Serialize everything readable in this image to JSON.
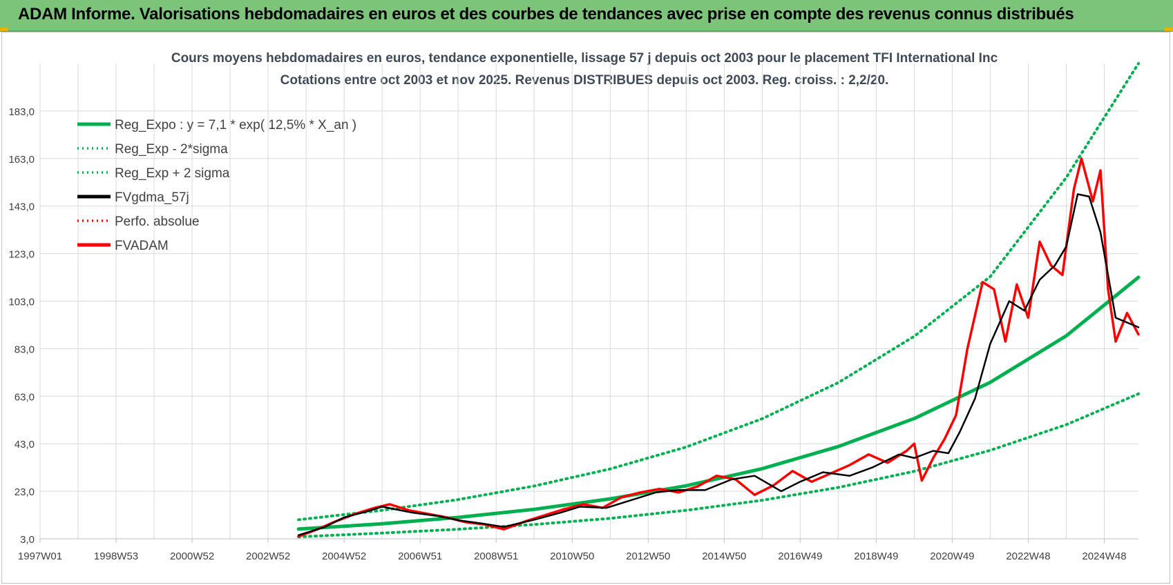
{
  "header": {
    "title": "ADAM Informe. Valorisations hebdomadaires en euros et des courbes de tendances avec prise en compte des revenus connus distribués"
  },
  "colors": {
    "header_bg": "#7cc47a",
    "trend": "#00b050",
    "smoothed": "#000000",
    "price": "#ff0000",
    "perfo": "#ff0000"
  },
  "chart_data": {
    "type": "line",
    "title_line1": "Cours moyens  hebdomadaires en euros, tendance exponentielle, lissage 57 j depuis oct 2003 pour le placement TFI International Inc",
    "title_line2": "Cotations entre oct 2003  et nov 2025. Revenus DISTRIBUES depuis oct 2003.  Reg. croiss. : 2,2/20.",
    "xlabel": "",
    "ylabel": "",
    "ylim": [
      3,
      203
    ],
    "xlim": [
      1997.0,
      2025.9
    ],
    "y_ticks": [
      "183,0",
      "163,0",
      "143,0",
      "123,0",
      "103,0",
      "83,0",
      "63,0",
      "43,0",
      "23,0",
      "3,0"
    ],
    "y_tick_values": [
      183,
      163,
      143,
      123,
      103,
      83,
      63,
      43,
      23,
      3
    ],
    "x_ticks": [
      "1997W01",
      "1998W53",
      "2000W52",
      "2002W52",
      "2004W52",
      "2006W51",
      "2008W51",
      "2010W50",
      "2012W50",
      "2014W50",
      "2016W49",
      "2018W49",
      "2020W49",
      "2022W48",
      "2024W48"
    ],
    "x_tick_years": [
      1997.0,
      1999.0,
      2001.0,
      2003.0,
      2005.0,
      2007.0,
      2009.0,
      2011.0,
      2013.0,
      2015.0,
      2017.0,
      2019.0,
      2021.0,
      2023.0,
      2025.0
    ],
    "legend": [
      {
        "label": "Reg_Expo : y = 7,1 * exp( 12,5% *  X_an )",
        "style": "solid",
        "color": "#00b050"
      },
      {
        "label": "Reg_Exp - 2*sigma",
        "style": "dotted",
        "color": "#00b050"
      },
      {
        "label": "Reg_Exp + 2 sigma",
        "style": "dotted",
        "color": "#00b050"
      },
      {
        "label": "FVgdma_57j",
        "style": "solid",
        "color": "#000000"
      },
      {
        "label": "Perfo. absolue",
        "style": "dotted",
        "color": "#ff0000"
      },
      {
        "label": "FVADAM",
        "style": "solid",
        "color": "#ff0000"
      }
    ],
    "series": [
      {
        "name": "Reg_Expo",
        "x": [
          2003.8,
          2006.0,
          2008.0,
          2010.0,
          2012.0,
          2014.0,
          2016.0,
          2018.0,
          2020.0,
          2022.0,
          2024.0,
          2025.9
        ],
        "values": [
          7.1,
          9.3,
          12.0,
          15.4,
          19.8,
          25.3,
          32.5,
          41.8,
          53.6,
          68.8,
          88.4,
          113.0
        ]
      },
      {
        "name": "Reg_Exp - 2*sigma",
        "x": [
          2003.8,
          2006.0,
          2008.0,
          2010.0,
          2012.0,
          2014.0,
          2016.0,
          2018.0,
          2020.0,
          2022.0,
          2024.0,
          2025.9
        ],
        "values": [
          3.8,
          5.4,
          7.0,
          9.0,
          11.6,
          15.0,
          19.2,
          24.6,
          31.4,
          40.2,
          51.0,
          64.0
        ]
      },
      {
        "name": "Reg_Exp + 2 sigma",
        "x": [
          2003.8,
          2006.0,
          2008.0,
          2010.0,
          2012.0,
          2014.0,
          2016.0,
          2018.0,
          2020.0,
          2022.0,
          2024.0,
          2025.9
        ],
        "values": [
          11.0,
          15.0,
          19.5,
          25.2,
          32.4,
          41.6,
          53.5,
          68.7,
          88.2,
          113.3,
          155.0,
          204.0
        ]
      },
      {
        "name": "FVgdma_57j",
        "x": [
          2003.8,
          2004.5,
          2005.0,
          2005.6,
          2006.0,
          2006.8,
          2007.5,
          2008.0,
          2008.6,
          2009.2,
          2010.0,
          2010.7,
          2011.2,
          2011.9,
          2012.6,
          2013.2,
          2013.8,
          2014.5,
          2015.2,
          2015.8,
          2016.5,
          2017.0,
          2017.6,
          2018.3,
          2018.9,
          2019.6,
          2020.0,
          2020.5,
          2020.9,
          2021.2,
          2021.6,
          2022.0,
          2022.5,
          2022.9,
          2023.3,
          2023.7,
          2024.0,
          2024.3,
          2024.6,
          2024.9,
          2025.3,
          2025.9
        ],
        "values": [
          4.5,
          8.0,
          12.0,
          14.5,
          16.5,
          14.0,
          12.5,
          10.8,
          9.5,
          8.0,
          11.0,
          14.0,
          16.5,
          16.0,
          19.5,
          22.5,
          23.5,
          23.5,
          28.0,
          29.5,
          23.0,
          27.0,
          31.0,
          29.5,
          33.0,
          38.5,
          37.0,
          40.0,
          39.0,
          48.0,
          62.0,
          85.0,
          103.0,
          99.0,
          112.0,
          118.0,
          126.0,
          148.0,
          147.0,
          132.0,
          96.0,
          92.0
        ]
      },
      {
        "name": "FVADAM",
        "x": [
          2003.8,
          2004.3,
          2004.8,
          2005.3,
          2005.8,
          2006.2,
          2006.7,
          2007.2,
          2007.7,
          2008.2,
          2008.7,
          2009.2,
          2009.8,
          2010.3,
          2010.8,
          2011.3,
          2011.8,
          2012.3,
          2012.8,
          2013.3,
          2013.8,
          2014.3,
          2014.8,
          2015.3,
          2015.8,
          2016.3,
          2016.8,
          2017.3,
          2017.8,
          2018.3,
          2018.8,
          2019.3,
          2019.8,
          2020.0,
          2020.2,
          2020.5,
          2020.8,
          2021.1,
          2021.4,
          2021.8,
          2022.1,
          2022.4,
          2022.7,
          2023.0,
          2023.3,
          2023.6,
          2023.9,
          2024.2,
          2024.4,
          2024.7,
          2024.9,
          2025.1,
          2025.3,
          2025.6,
          2025.9
        ],
        "values": [
          4.0,
          7.0,
          10.5,
          13.5,
          16.0,
          17.5,
          15.0,
          13.5,
          12.0,
          10.0,
          9.0,
          7.0,
          10.5,
          13.0,
          15.5,
          17.5,
          16.0,
          20.5,
          22.5,
          24.0,
          22.5,
          25.0,
          29.5,
          28.0,
          21.5,
          25.5,
          31.5,
          27.0,
          30.5,
          34.0,
          38.5,
          35.0,
          40.0,
          43.0,
          27.5,
          37.0,
          45.0,
          55.0,
          83.0,
          111.0,
          108.0,
          86.0,
          110.0,
          96.0,
          128.0,
          118.0,
          114.0,
          150.0,
          163.0,
          145.0,
          158.0,
          108.0,
          86.0,
          98.0,
          89.0
        ]
      }
    ]
  }
}
